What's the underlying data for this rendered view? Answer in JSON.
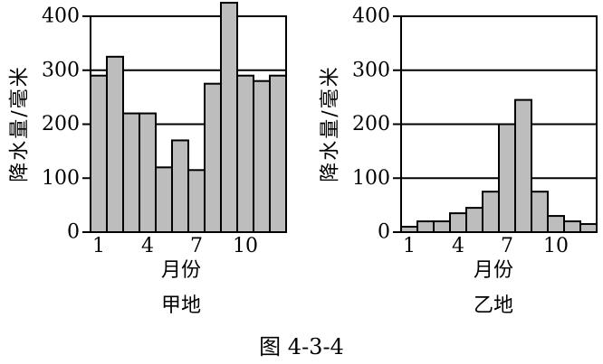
{
  "figure_caption": "图 4-3-4",
  "colors": {
    "bar_fill": "#bdbdbd",
    "bar_stroke": "#000000",
    "axis": "#000000"
  },
  "chart_data": [
    {
      "type": "bar",
      "title": "甲地",
      "xlabel": "月份",
      "ylabel": "降水量/毫米",
      "ylim": [
        0,
        400
      ],
      "yticks": [
        "0",
        "100",
        "200",
        "300",
        "400"
      ],
      "ytick_values": [
        0,
        100,
        200,
        300,
        400
      ],
      "grid_lines": [
        100,
        200,
        300,
        400
      ],
      "categories": [
        1,
        2,
        3,
        4,
        5,
        6,
        7,
        8,
        9,
        10,
        11,
        12
      ],
      "xtick_labels": [
        "1",
        "4",
        "7",
        "10"
      ],
      "xtick_months": [
        1,
        4,
        7,
        10
      ],
      "values": [
        290,
        325,
        220,
        220,
        120,
        170,
        115,
        275,
        425,
        290,
        280,
        290
      ]
    },
    {
      "type": "bar",
      "title": "乙地",
      "xlabel": "月份",
      "ylabel": "降水量/毫米",
      "ylim": [
        0,
        400
      ],
      "yticks": [
        "0",
        "100",
        "200",
        "300",
        "400"
      ],
      "ytick_values": [
        0,
        100,
        200,
        300,
        400
      ],
      "grid_lines": [
        100,
        200,
        300,
        400
      ],
      "categories": [
        1,
        2,
        3,
        4,
        5,
        6,
        7,
        8,
        9,
        10,
        11,
        12
      ],
      "xtick_labels": [
        "1",
        "4",
        "7",
        "10"
      ],
      "xtick_months": [
        1,
        4,
        7,
        10
      ],
      "values": [
        10,
        20,
        20,
        35,
        45,
        75,
        200,
        245,
        75,
        30,
        20,
        15
      ]
    }
  ]
}
